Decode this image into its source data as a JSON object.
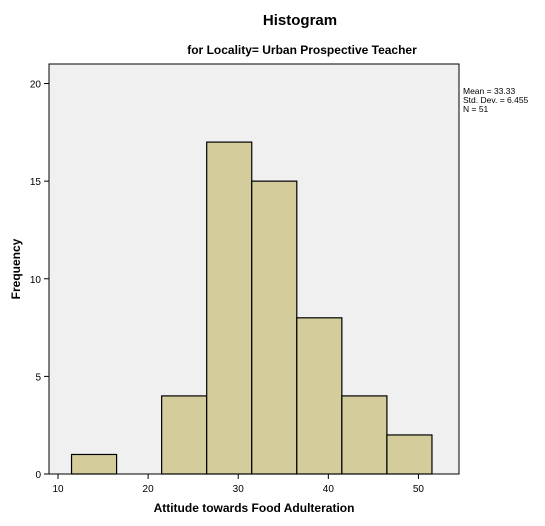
{
  "chart_data": {
    "type": "bar",
    "title": "Histogram",
    "subtitle": "for Locality= Urban Prospective Teacher",
    "xlabel": "Attitude towards Food Adulteration",
    "ylabel": "Frequency",
    "x_ticks": [
      10,
      20,
      30,
      40,
      50
    ],
    "y_ticks": [
      0,
      5,
      10,
      15,
      20
    ],
    "xlim": [
      9,
      54.5
    ],
    "ylim": [
      0,
      21
    ],
    "bins": [
      {
        "start": 11.5,
        "end": 16.5,
        "value": 1
      },
      {
        "start": 16.5,
        "end": 21.5,
        "value": 0
      },
      {
        "start": 21.5,
        "end": 26.5,
        "value": 4
      },
      {
        "start": 26.5,
        "end": 31.5,
        "value": 17
      },
      {
        "start": 31.5,
        "end": 36.5,
        "value": 15
      },
      {
        "start": 36.5,
        "end": 41.5,
        "value": 8
      },
      {
        "start": 41.5,
        "end": 46.5,
        "value": 4
      },
      {
        "start": 46.5,
        "end": 51.5,
        "value": 2
      }
    ],
    "stats": [
      "Mean = 33.33",
      "Std. Dev. = 6.455",
      "N = 51"
    ],
    "grid": false,
    "colors": {
      "bar_fill": "#d4cd9b",
      "bar_stroke": "#000000",
      "plot_bg": "#f0f0f0"
    }
  }
}
